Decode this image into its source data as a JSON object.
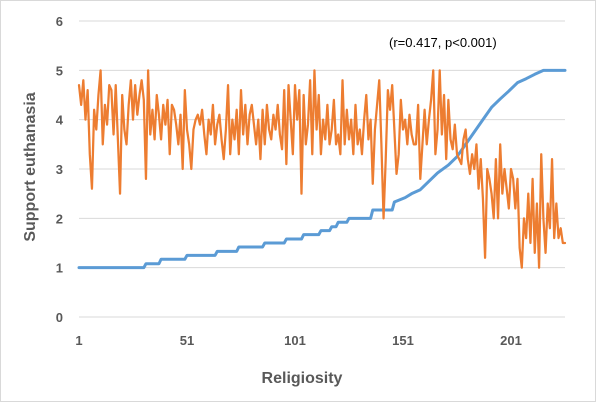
{
  "chart_data": {
    "type": "line",
    "title": "",
    "xlabel": "Religiosity",
    "ylabel": "Support euthanasia",
    "annotation": "(r=0.417, p<0.001)",
    "xlim": [
      1,
      226
    ],
    "ylim": [
      0,
      6
    ],
    "xticks": [
      "1",
      "51",
      "101",
      "151",
      "201"
    ],
    "xtick_values": [
      1,
      51,
      101,
      151,
      201
    ],
    "yticks": [
      "0",
      "1",
      "2",
      "3",
      "4",
      "5",
      "6"
    ],
    "grid": "horizontal",
    "legend": "none",
    "series": [
      {
        "color": "#5b9bd5",
        "points": [
          [
            1,
            1.0
          ],
          [
            31,
            1.0
          ],
          [
            32,
            1.08
          ],
          [
            38,
            1.08
          ],
          [
            39,
            1.17
          ],
          [
            50,
            1.17
          ],
          [
            51,
            1.25
          ],
          [
            64,
            1.25
          ],
          [
            65,
            1.33
          ],
          [
            74,
            1.33
          ],
          [
            75,
            1.42
          ],
          [
            86,
            1.42
          ],
          [
            87,
            1.5
          ],
          [
            96,
            1.5
          ],
          [
            97,
            1.58
          ],
          [
            104,
            1.58
          ],
          [
            105,
            1.67
          ],
          [
            112,
            1.67
          ],
          [
            113,
            1.75
          ],
          [
            117,
            1.75
          ],
          [
            118,
            1.83
          ],
          [
            120,
            1.83
          ],
          [
            121,
            1.92
          ],
          [
            125,
            1.92
          ],
          [
            126,
            2.0
          ],
          [
            136,
            2.0
          ],
          [
            137,
            2.17
          ],
          [
            146,
            2.17
          ],
          [
            147,
            2.33
          ],
          [
            152,
            2.42
          ],
          [
            155,
            2.5
          ],
          [
            159,
            2.58
          ],
          [
            163,
            2.75
          ],
          [
            167,
            2.92
          ],
          [
            172,
            3.08
          ],
          [
            176,
            3.25
          ],
          [
            180,
            3.5
          ],
          [
            184,
            3.75
          ],
          [
            188,
            4.0
          ],
          [
            192,
            4.25
          ],
          [
            196,
            4.42
          ],
          [
            200,
            4.58
          ],
          [
            204,
            4.75
          ],
          [
            208,
            4.83
          ],
          [
            212,
            4.92
          ],
          [
            216,
            5.0
          ],
          [
            226,
            5.0
          ]
        ]
      },
      {
        "color": "#ed7d31",
        "points": [
          [
            1,
            4.7
          ],
          [
            2,
            4.3
          ],
          [
            3,
            4.8
          ],
          [
            4,
            4.0
          ],
          [
            5,
            4.6
          ],
          [
            6,
            3.3
          ],
          [
            7,
            2.6
          ],
          [
            8,
            4.2
          ],
          [
            9,
            3.8
          ],
          [
            10,
            4.5
          ],
          [
            11,
            5.0
          ],
          [
            12,
            3.5
          ],
          [
            13,
            4.3
          ],
          [
            14,
            3.9
          ],
          [
            15,
            4.7
          ],
          [
            16,
            4.6
          ],
          [
            17,
            3.7
          ],
          [
            18,
            4.7
          ],
          [
            19,
            3.6
          ],
          [
            20,
            2.5
          ],
          [
            21,
            4.5
          ],
          [
            22,
            3.8
          ],
          [
            23,
            3.5
          ],
          [
            24,
            4.3
          ],
          [
            25,
            4.8
          ],
          [
            26,
            4.0
          ],
          [
            27,
            4.7
          ],
          [
            28,
            4.1
          ],
          [
            29,
            4.5
          ],
          [
            30,
            4.8
          ],
          [
            31,
            4.4
          ],
          [
            32,
            2.8
          ],
          [
            33,
            5.0
          ],
          [
            34,
            3.7
          ],
          [
            35,
            4.2
          ],
          [
            36,
            3.6
          ],
          [
            37,
            4.5
          ],
          [
            38,
            4.1
          ],
          [
            39,
            3.6
          ],
          [
            40,
            4.3
          ],
          [
            41,
            3.9
          ],
          [
            42,
            4.4
          ],
          [
            43,
            3.3
          ],
          [
            44,
            4.3
          ],
          [
            45,
            4.2
          ],
          [
            46,
            3.9
          ],
          [
            47,
            3.5
          ],
          [
            48,
            4.1
          ],
          [
            49,
            3.0
          ],
          [
            50,
            4.6
          ],
          [
            51,
            3.8
          ],
          [
            52,
            3.5
          ],
          [
            53,
            3.0
          ],
          [
            54,
            3.8
          ],
          [
            55,
            4.0
          ],
          [
            56,
            4.1
          ],
          [
            57,
            3.9
          ],
          [
            58,
            4.2
          ],
          [
            59,
            3.7
          ],
          [
            60,
            3.3
          ],
          [
            61,
            4.0
          ],
          [
            62,
            3.7
          ],
          [
            63,
            4.3
          ],
          [
            64,
            3.5
          ],
          [
            65,
            3.9
          ],
          [
            66,
            4.1
          ],
          [
            67,
            3.6
          ],
          [
            68,
            3.2
          ],
          [
            69,
            3.8
          ],
          [
            70,
            4.7
          ],
          [
            71,
            3.3
          ],
          [
            72,
            4.0
          ],
          [
            73,
            3.6
          ],
          [
            74,
            4.2
          ],
          [
            75,
            3.3
          ],
          [
            76,
            4.6
          ],
          [
            77,
            3.7
          ],
          [
            78,
            4.3
          ],
          [
            79,
            3.5
          ],
          [
            80,
            4.1
          ],
          [
            81,
            4.3
          ],
          [
            82,
            3.9
          ],
          [
            83,
            3.5
          ],
          [
            84,
            4.0
          ],
          [
            85,
            3.2
          ],
          [
            86,
            4.2
          ],
          [
            87,
            3.5
          ],
          [
            88,
            4.3
          ],
          [
            89,
            3.8
          ],
          [
            90,
            3.6
          ],
          [
            91,
            4.1
          ],
          [
            92,
            3.8
          ],
          [
            93,
            4.3
          ],
          [
            94,
            3.7
          ],
          [
            95,
            3.4
          ],
          [
            96,
            4.6
          ],
          [
            97,
            3.1
          ],
          [
            98,
            4.7
          ],
          [
            99,
            4.0
          ],
          [
            100,
            3.3
          ],
          [
            101,
            4.7
          ],
          [
            102,
            4.0
          ],
          [
            103,
            4.6
          ],
          [
            104,
            2.5
          ],
          [
            105,
            4.5
          ],
          [
            106,
            3.5
          ],
          [
            107,
            3.9
          ],
          [
            108,
            4.8
          ],
          [
            109,
            3.3
          ],
          [
            110,
            5.0
          ],
          [
            111,
            3.8
          ],
          [
            112,
            4.5
          ],
          [
            113,
            3.3
          ],
          [
            114,
            4.0
          ],
          [
            115,
            3.6
          ],
          [
            116,
            4.3
          ],
          [
            117,
            3.5
          ],
          [
            118,
            3.8
          ],
          [
            119,
            4.4
          ],
          [
            120,
            3.5
          ],
          [
            121,
            3.7
          ],
          [
            122,
            3.3
          ],
          [
            123,
            4.8
          ],
          [
            124,
            3.5
          ],
          [
            125,
            4.2
          ],
          [
            126,
            3.6
          ],
          [
            127,
            4.0
          ],
          [
            128,
            3.3
          ],
          [
            129,
            4.3
          ],
          [
            130,
            3.5
          ],
          [
            131,
            3.8
          ],
          [
            132,
            3.3
          ],
          [
            133,
            4.0
          ],
          [
            134,
            4.5
          ],
          [
            135,
            3.6
          ],
          [
            136,
            4.0
          ],
          [
            137,
            2.7
          ],
          [
            138,
            3.8
          ],
          [
            139,
            4.3
          ],
          [
            140,
            4.8
          ],
          [
            141,
            3.5
          ],
          [
            142,
            2.0
          ],
          [
            143,
            3.2
          ],
          [
            144,
            4.6
          ],
          [
            145,
            4.2
          ],
          [
            146,
            4.7
          ],
          [
            147,
            3.8
          ],
          [
            148,
            2.9
          ],
          [
            149,
            3.3
          ],
          [
            150,
            4.4
          ],
          [
            151,
            3.8
          ],
          [
            152,
            4.0
          ],
          [
            153,
            3.5
          ],
          [
            154,
            4.1
          ],
          [
            155,
            3.7
          ],
          [
            156,
            3.5
          ],
          [
            157,
            3.5
          ],
          [
            158,
            4.3
          ],
          [
            159,
            2.8
          ],
          [
            160,
            3.5
          ],
          [
            161,
            4.2
          ],
          [
            162,
            3.5
          ],
          [
            163,
            4.0
          ],
          [
            164,
            4.4
          ],
          [
            165,
            5.0
          ],
          [
            166,
            3.3
          ],
          [
            167,
            3.8
          ],
          [
            168,
            5.0
          ],
          [
            169,
            3.7
          ],
          [
            170,
            4.5
          ],
          [
            171,
            3.2
          ],
          [
            172,
            4.4
          ],
          [
            173,
            3.6
          ],
          [
            174,
            3.4
          ],
          [
            175,
            3.9
          ],
          [
            176,
            3.3
          ],
          [
            177,
            3.2
          ],
          [
            178,
            3.1
          ],
          [
            179,
            3.6
          ],
          [
            180,
            3.8
          ],
          [
            181,
            3.2
          ],
          [
            182,
            2.9
          ],
          [
            183,
            3.3
          ],
          [
            184,
            3.0
          ],
          [
            185,
            3.5
          ],
          [
            186,
            2.6
          ],
          [
            187,
            3.2
          ],
          [
            188,
            2.4
          ],
          [
            189,
            1.2
          ],
          [
            190,
            3.0
          ],
          [
            191,
            2.8
          ],
          [
            192,
            2.5
          ],
          [
            193,
            2.0
          ],
          [
            194,
            3.2
          ],
          [
            195,
            2.0
          ],
          [
            196,
            3.5
          ],
          [
            197,
            2.5
          ],
          [
            198,
            3.0
          ],
          [
            199,
            2.6
          ],
          [
            200,
            2.2
          ],
          [
            201,
            3.0
          ],
          [
            202,
            2.8
          ],
          [
            203,
            2.2
          ],
          [
            204,
            2.8
          ],
          [
            205,
            1.4
          ],
          [
            206,
            1.0
          ],
          [
            207,
            2.0
          ],
          [
            208,
            1.6
          ],
          [
            209,
            2.5
          ],
          [
            210,
            1.5
          ],
          [
            211,
            2.8
          ],
          [
            212,
            1.3
          ],
          [
            213,
            2.3
          ],
          [
            214,
            1.0
          ],
          [
            215,
            3.3
          ],
          [
            216,
            2.0
          ],
          [
            217,
            1.3
          ],
          [
            218,
            2.3
          ],
          [
            219,
            1.8
          ],
          [
            220,
            3.2
          ],
          [
            221,
            1.6
          ],
          [
            222,
            2.3
          ],
          [
            223,
            1.6
          ],
          [
            224,
            1.8
          ],
          [
            225,
            1.5
          ],
          [
            226,
            1.5
          ]
        ]
      }
    ]
  }
}
